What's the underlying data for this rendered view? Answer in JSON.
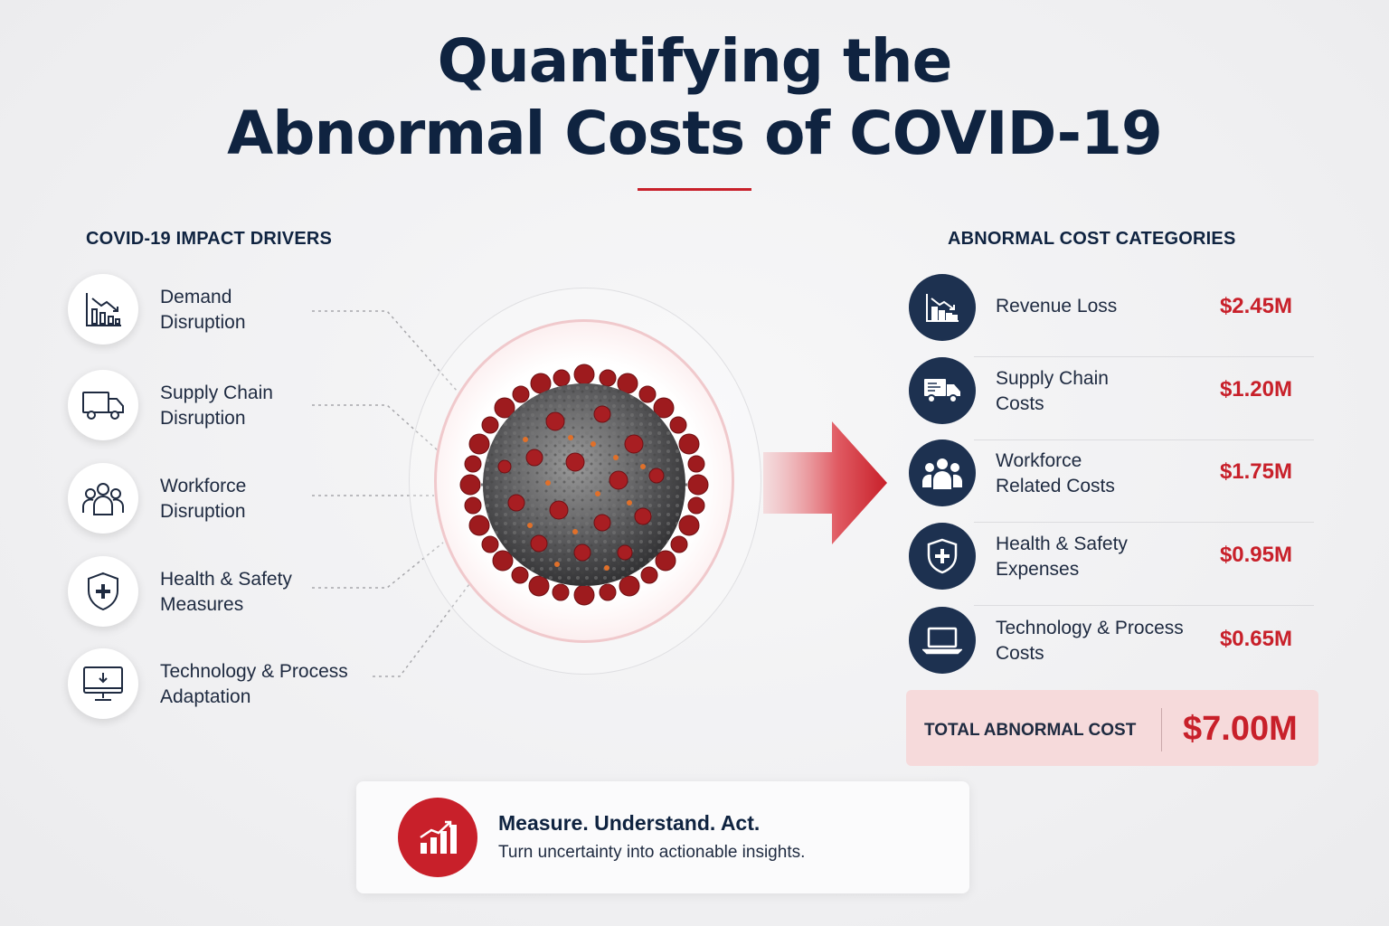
{
  "title": {
    "line1": "Quantifying the",
    "line2": "Abnormal Costs of COVID-19"
  },
  "drivers": {
    "heading": "COVID-19 IMPACT DRIVERS",
    "items": [
      {
        "line1": "Demand",
        "line2": "Disruption",
        "icon": "declining-chart-icon"
      },
      {
        "line1": "Supply Chain",
        "line2": "Disruption",
        "icon": "truck-icon"
      },
      {
        "line1": "Workforce",
        "line2": "Disruption",
        "icon": "people-group-icon"
      },
      {
        "line1": "Health & Safety",
        "line2": "Measures",
        "icon": "shield-plus-icon"
      },
      {
        "line1": "Technology & Process",
        "line2": "Adaptation",
        "icon": "monitor-icon"
      }
    ]
  },
  "costs": {
    "heading": "ABNORMAL COST CATEGORIES",
    "items": [
      {
        "line1": "Revenue Loss",
        "line2": "",
        "value": "$2.45M",
        "icon": "declining-chart-icon"
      },
      {
        "line1": "Supply Chain",
        "line2": "Costs",
        "value": "$1.20M",
        "icon": "truck-icon"
      },
      {
        "line1": "Workforce",
        "line2": "Related Costs",
        "value": "$1.75M",
        "icon": "people-group-icon"
      },
      {
        "line1": "Health & Safety",
        "line2": "Expenses",
        "value": "$0.95M",
        "icon": "shield-plus-icon"
      },
      {
        "line1": "Technology & Process",
        "line2": "Costs",
        "value": "$0.65M",
        "icon": "laptop-icon"
      }
    ],
    "total_label": "TOTAL ABNORMAL COST",
    "total_value": "$7.00M"
  },
  "callout": {
    "headline": "Measure. Understand. Act.",
    "subtext": "Turn uncertainty into actionable insights.",
    "icon": "bar-chart-icon"
  },
  "colors": {
    "navy": "#0f2340",
    "accent_red": "#c8202a",
    "icon_circle": "#1d3150",
    "total_bg": "#f6dadb"
  }
}
